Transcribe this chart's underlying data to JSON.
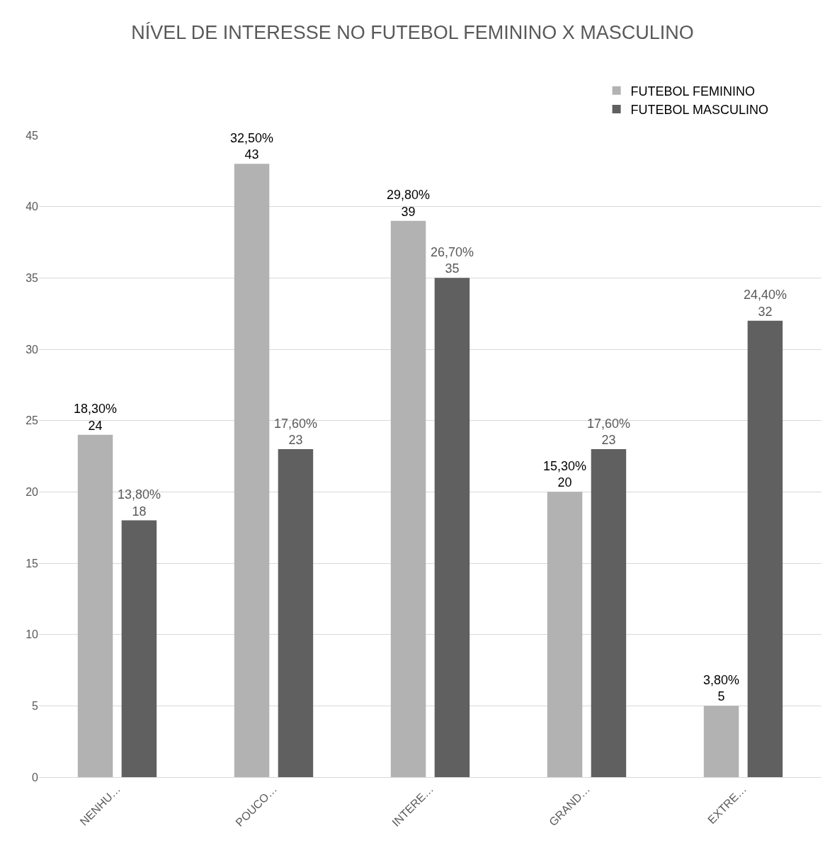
{
  "chart_data": {
    "type": "bar",
    "title": "NÍVEL DE INTERESSE NO FUTEBOL FEMININO X MASCULINO",
    "categories": [
      "NENHU…",
      "POUCO…",
      "INTERE…",
      "GRAND…",
      "EXTRE…"
    ],
    "series": [
      {
        "name": "FUTEBOL FEMININO",
        "color": "#b2b2b2",
        "values": [
          24,
          43,
          39,
          20,
          5
        ],
        "value_labels": [
          "18,30%\n24",
          "32,50%\n43",
          "29,80%\n39",
          "15,30%\n20",
          "3,80%\n5"
        ]
      },
      {
        "name": "FUTEBOL MASCULINO",
        "color": "#606060",
        "values": [
          18,
          23,
          35,
          23,
          32
        ],
        "value_labels": [
          "13,80%\n18",
          "17,60%\n23",
          "26,70%\n35",
          "17,60%\n23",
          "24,40%\n32"
        ]
      }
    ],
    "ylim": [
      0,
      45
    ],
    "yticks": [
      0,
      5,
      10,
      15,
      20,
      25,
      30,
      35,
      40,
      45
    ],
    "grid": "y",
    "legend": "top right"
  }
}
